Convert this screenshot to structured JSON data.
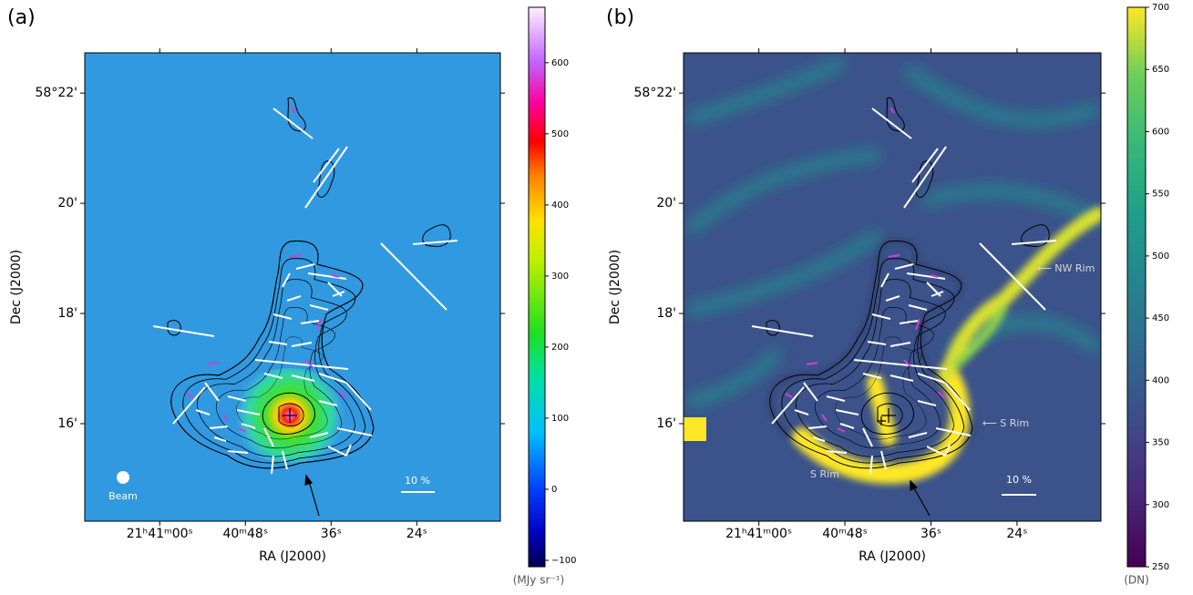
{
  "chart_data": [
    {
      "type": "map",
      "panel_label": "(a)",
      "xlabel": "RA (J2000)",
      "ylabel": "Dec (J2000)",
      "xlim": [
        78070.5,
        78012.3
      ],
      "xticks": [
        {
          "value": 78060,
          "label": "21ʰ41ᵐ00ˢ"
        },
        {
          "value": 78048,
          "label": "40ᵐ48ˢ"
        },
        {
          "value": 78036,
          "label": "36ˢ"
        },
        {
          "value": 78024,
          "label": "24ˢ"
        }
      ],
      "ylim": [
        14.23,
        22.73
      ],
      "yticks": [
        {
          "value": 22,
          "label": "58°22'"
        },
        {
          "value": 20,
          "label": "20'"
        },
        {
          "value": 18,
          "label": "18'"
        },
        {
          "value": 16,
          "label": "16'"
        }
      ],
      "clim": [
        -109,
        678
      ],
      "cticks": [
        {
          "value": -100,
          "label": "−100"
        },
        0,
        100,
        200,
        300,
        400,
        500,
        600
      ],
      "colorbar_label": "(MJy sr⁻¹)",
      "annotations": [
        "Beam",
        "10 %"
      ]
    },
    {
      "type": "map",
      "panel_label": "(b)",
      "xlabel": "RA (J2000)",
      "ylabel": "Dec (J2000)",
      "xlim": [
        78070.5,
        78012.3
      ],
      "xticks": [
        {
          "value": 78060,
          "label": "21ʰ41ᵐ00ˢ"
        },
        {
          "value": 78048,
          "label": "40ᵐ48ˢ"
        },
        {
          "value": 78036,
          "label": "36ˢ"
        },
        {
          "value": 78024,
          "label": "24ˢ"
        }
      ],
      "ylim": [
        14.23,
        22.73
      ],
      "yticks": [
        {
          "value": 22,
          "label": "58°22'"
        },
        {
          "value": 20,
          "label": "20'"
        },
        {
          "value": 18,
          "label": "18'"
        },
        {
          "value": 16,
          "label": "16'"
        }
      ],
      "clim": [
        250,
        700
      ],
      "cticks": [
        250,
        300,
        350,
        400,
        450,
        500,
        550,
        600,
        650,
        700
      ],
      "colorbar_label": "(DN)",
      "colormap": "viridis",
      "annotations": [
        "⟵ NW Rim",
        "⟵ S Rim",
        "S Rim",
        "10 %"
      ]
    }
  ]
}
